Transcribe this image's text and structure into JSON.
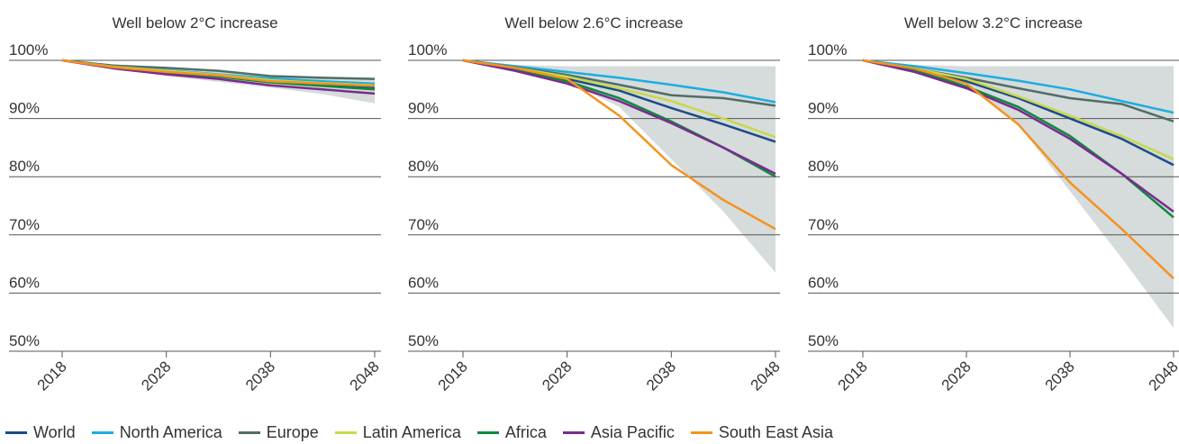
{
  "colors": {
    "World": "#1a4a8a",
    "North America": "#1aaee0",
    "Europe": "#4f6e66",
    "Latin America": "#c7d94a",
    "Africa": "#0c8a3e",
    "Asia Pacific": "#7a2b8f",
    "South East Asia": "#f6921e",
    "band": "#d6dbdb",
    "grid": "#555555"
  },
  "legend": [
    "World",
    "North America",
    "Europe",
    "Latin America",
    "Africa",
    "Asia Pacific",
    "South East Asia"
  ],
  "chart_data": [
    {
      "type": "line",
      "title": "Well below 2°C increase",
      "x": [
        2018,
        2023,
        2028,
        2033,
        2038,
        2043,
        2048
      ],
      "xticks": [
        "2018",
        "2028",
        "2038",
        "2048"
      ],
      "yticks": [
        "100%",
        "90%",
        "80%",
        "70%",
        "60%",
        "50%"
      ],
      "ylim": [
        50,
        100
      ],
      "xlim": [
        2018,
        2048
      ],
      "band": {
        "upper": [
          100,
          99.2,
          98.8,
          98.3,
          97.5,
          97.2,
          97.0
        ],
        "lower": [
          100,
          98.6,
          97.3,
          96.3,
          95.3,
          94.2,
          92.6
        ]
      },
      "series": [
        {
          "name": "World",
          "values": [
            100,
            98.9,
            98.1,
            97.4,
            96.5,
            95.9,
            95.4
          ]
        },
        {
          "name": "North America",
          "values": [
            100,
            99.0,
            98.3,
            97.6,
            96.9,
            96.4,
            96.0
          ]
        },
        {
          "name": "Europe",
          "values": [
            100,
            99.1,
            98.7,
            98.2,
            97.3,
            97.0,
            96.8
          ]
        },
        {
          "name": "Latin America",
          "values": [
            100,
            98.9,
            98.2,
            97.5,
            96.6,
            96.1,
            95.7
          ]
        },
        {
          "name": "Africa",
          "values": [
            100,
            98.8,
            97.9,
            97.2,
            96.2,
            95.6,
            95.0
          ]
        },
        {
          "name": "Asia Pacific",
          "values": [
            100,
            98.6,
            97.6,
            96.8,
            95.7,
            95.0,
            94.3
          ]
        },
        {
          "name": "South East Asia",
          "values": [
            100,
            98.8,
            98.0,
            97.4,
            96.4,
            96.0,
            95.6
          ]
        }
      ]
    },
    {
      "type": "line",
      "title": "Well below 2.6°C increase",
      "x": [
        2018,
        2023,
        2028,
        2033,
        2038,
        2043,
        2048
      ],
      "xticks": [
        "2018",
        "2028",
        "2038",
        "2048"
      ],
      "yticks": [
        "100%",
        "90%",
        "80%",
        "70%",
        "60%",
        "50%"
      ],
      "ylim": [
        50,
        100
      ],
      "xlim": [
        2018,
        2048
      ],
      "band": {
        "upper": [
          100,
          99.2,
          99,
          99,
          99,
          99,
          99
        ],
        "lower": [
          100,
          98.4,
          96.3,
          92.0,
          83.0,
          74.0,
          63.5
        ]
      },
      "series": [
        {
          "name": "World",
          "values": [
            100,
            98.6,
            96.8,
            94.8,
            91.8,
            89.0,
            86.0
          ]
        },
        {
          "name": "North America",
          "values": [
            100,
            99.0,
            98.0,
            97.0,
            95.8,
            94.5,
            92.8
          ]
        },
        {
          "name": "Europe",
          "values": [
            100,
            98.8,
            97.5,
            95.8,
            94.0,
            93.5,
            92.2
          ]
        },
        {
          "name": "Latin America",
          "values": [
            100,
            98.7,
            97.2,
            95.2,
            93.0,
            90.0,
            86.8
          ]
        },
        {
          "name": "Africa",
          "values": [
            100,
            98.5,
            96.4,
            93.5,
            89.5,
            85.0,
            80.0
          ]
        },
        {
          "name": "Asia Pacific",
          "values": [
            100,
            98.2,
            96.0,
            93.0,
            89.2,
            85.0,
            80.5
          ]
        },
        {
          "name": "South East Asia",
          "values": [
            100,
            98.7,
            96.8,
            90.5,
            82.0,
            76.0,
            71.0
          ]
        }
      ]
    },
    {
      "type": "line",
      "title": "Well below 3.2°C increase",
      "x": [
        2018,
        2023,
        2028,
        2033,
        2038,
        2043,
        2048
      ],
      "xticks": [
        "2018",
        "2028",
        "2038",
        "2048"
      ],
      "yticks": [
        "100%",
        "90%",
        "80%",
        "70%",
        "60%",
        "50%"
      ],
      "ylim": [
        50,
        100
      ],
      "xlim": [
        2018,
        2048
      ],
      "band": {
        "upper": [
          100,
          99.2,
          99,
          99,
          99,
          99,
          99
        ],
        "lower": [
          100,
          98.2,
          96.0,
          89.0,
          77.5,
          66.0,
          54.0
        ]
      },
      "series": [
        {
          "name": "World",
          "values": [
            100,
            98.4,
            96.4,
            93.5,
            90.0,
            86.5,
            82.0
          ]
        },
        {
          "name": "North America",
          "values": [
            100,
            99.0,
            97.8,
            96.5,
            95.0,
            93.0,
            91.0
          ]
        },
        {
          "name": "Europe",
          "values": [
            100,
            98.6,
            97.0,
            95.2,
            93.5,
            92.5,
            89.5
          ]
        },
        {
          "name": "Latin America",
          "values": [
            100,
            98.6,
            96.8,
            93.8,
            90.5,
            87.0,
            83.0
          ]
        },
        {
          "name": "Africa",
          "values": [
            100,
            98.4,
            95.5,
            92.0,
            87.0,
            80.5,
            73.0
          ]
        },
        {
          "name": "Asia Pacific",
          "values": [
            100,
            98.0,
            95.2,
            91.5,
            86.5,
            80.5,
            74.0
          ]
        },
        {
          "name": "South East Asia",
          "values": [
            100,
            98.6,
            96.0,
            89.0,
            79.0,
            71.0,
            62.5
          ]
        }
      ]
    }
  ]
}
